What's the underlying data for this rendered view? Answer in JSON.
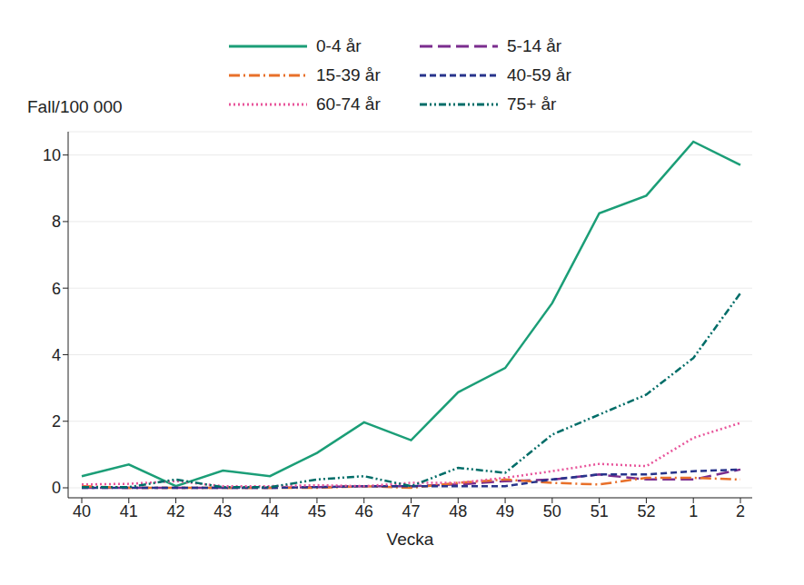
{
  "chart_data": {
    "type": "line",
    "x_label": "Vecka",
    "y_label": "Fall/100 000",
    "categories": [
      "40",
      "41",
      "42",
      "43",
      "44",
      "45",
      "46",
      "47",
      "48",
      "49",
      "50",
      "51",
      "52",
      "1",
      "2"
    ],
    "ylim": [
      -0.3,
      10.7
    ],
    "yticks": [
      0,
      2,
      4,
      6,
      8,
      10
    ],
    "grid": true,
    "legend": "top",
    "series": [
      {
        "name": "0-4 år",
        "color": "#1b9e77",
        "line_style": "solid",
        "values": [
          0.35,
          0.7,
          0.05,
          0.52,
          0.35,
          1.05,
          1.97,
          1.43,
          2.87,
          3.6,
          5.55,
          8.25,
          8.78,
          10.4,
          9.7
        ]
      },
      {
        "name": "5-14 år",
        "color": "#7b2d8e",
        "line_style": "longdash",
        "values": [
          0,
          0,
          0,
          0,
          0,
          0.02,
          0.05,
          0.05,
          0.1,
          0.2,
          0.25,
          0.4,
          0.25,
          0.25,
          0.55
        ]
      },
      {
        "name": "15-39 år",
        "color": "#e8702a",
        "line_style": "dashdot",
        "values": [
          0.05,
          0,
          0,
          0,
          0,
          0,
          0.05,
          0,
          0.15,
          0.25,
          0.15,
          0.1,
          0.3,
          0.3,
          0.25
        ]
      },
      {
        "name": "40-59 år",
        "color": "#27348b",
        "line_style": "dash",
        "values": [
          0,
          0,
          0,
          0,
          0,
          0.02,
          0.05,
          0.05,
          0.05,
          0.05,
          0.25,
          0.4,
          0.4,
          0.5,
          0.55
        ]
      },
      {
        "name": "60-74 år",
        "color": "#e8559b",
        "line_style": "dot",
        "values": [
          0.1,
          0.12,
          0.2,
          0.05,
          0.05,
          0.08,
          0.05,
          0.15,
          0.15,
          0.3,
          0.5,
          0.72,
          0.65,
          1.5,
          1.95
        ]
      },
      {
        "name": "75+ år",
        "color": "#006d68",
        "line_style": "dashdotdot",
        "values": [
          0.02,
          0.02,
          0.25,
          0.02,
          0.02,
          0.25,
          0.35,
          0.05,
          0.6,
          0.45,
          1.6,
          2.2,
          2.8,
          3.9,
          5.85
        ]
      }
    ]
  }
}
